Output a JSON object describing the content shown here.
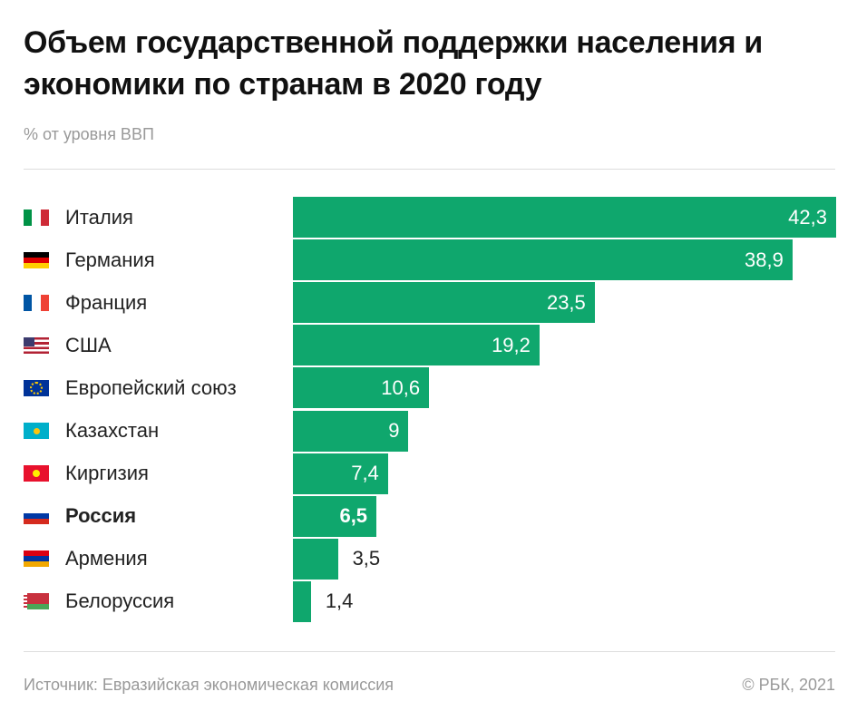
{
  "chart_data": {
    "type": "bar",
    "orientation": "horizontal",
    "title": "Объем государственной поддержки населения и экономики по странам в 2020 году",
    "subtitle": "% от уровня ВВП",
    "categories": [
      "Италия",
      "Германия",
      "Франция",
      "США",
      "Европейский союз",
      "Казахстан",
      "Киргизия",
      "Россия",
      "Армения",
      "Белоруссия"
    ],
    "values": [
      42.3,
      38.9,
      23.5,
      19.2,
      10.6,
      9,
      7.4,
      6.5,
      3.5,
      1.4
    ],
    "value_labels": [
      "42,3",
      "38,9",
      "23,5",
      "19,2",
      "10,6",
      "9",
      "7,4",
      "6,5",
      "3,5",
      "1,4"
    ],
    "color": "#0fa76d",
    "highlight_index": 7,
    "source": "Источник: Евразийская экономическая комиссия",
    "copyright": "© РБК, 2021"
  }
}
